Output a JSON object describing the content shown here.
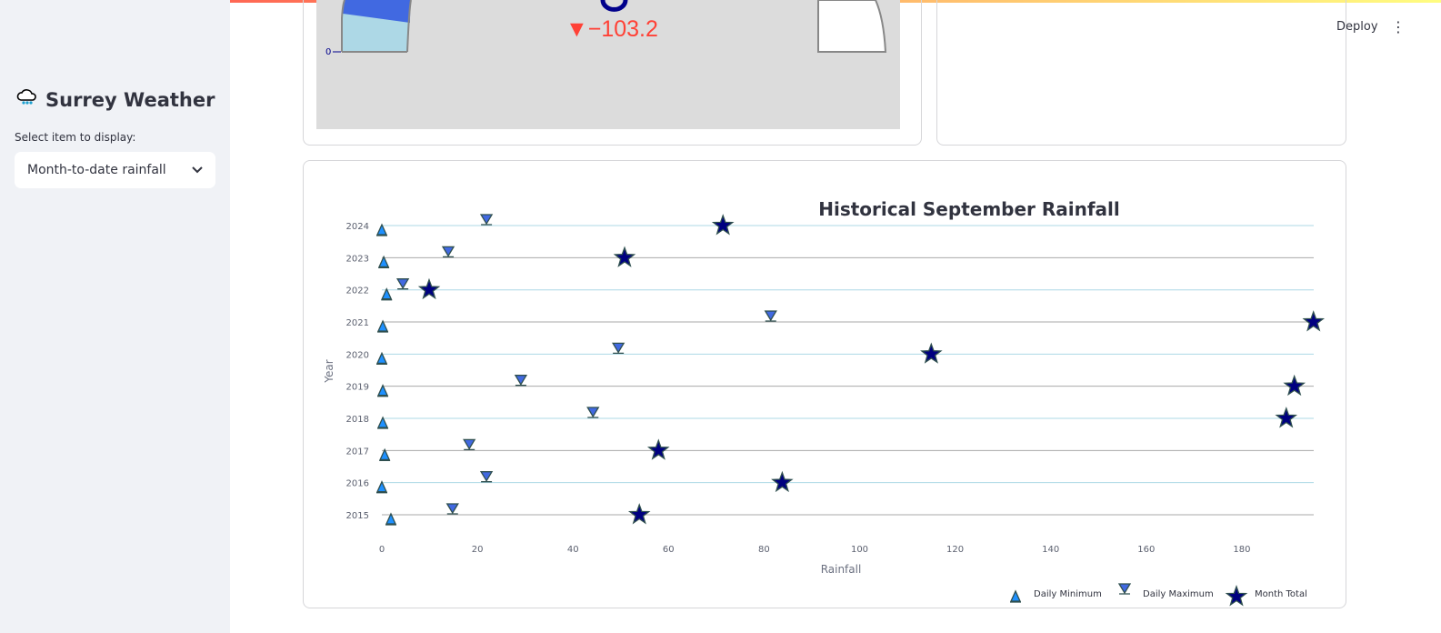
{
  "sidebar": {
    "title": "Surrey Weather",
    "icon": "rain-cloud-icon",
    "select_label": "Select item to display:",
    "select_value": "Month-to-date rainfall"
  },
  "header": {
    "deploy": "Deploy"
  },
  "gauge": {
    "delta": "▼−103.2",
    "axis_zero": "0",
    "colors": {
      "bar": "#4169e1",
      "step": "#add8e6",
      "delta": "#ff4136"
    }
  },
  "chart_data": {
    "type": "scatter",
    "title": "Historical September Rainfall",
    "xlabel": "Rainfall",
    "ylabel": "Year",
    "xlim": [
      0,
      196
    ],
    "xticks": [
      0,
      20,
      40,
      60,
      80,
      100,
      120,
      140,
      160,
      180
    ],
    "years": [
      2015,
      2016,
      2017,
      2018,
      2019,
      2020,
      2021,
      2022,
      2023,
      2024
    ],
    "grid": true,
    "legend": "bottom-right",
    "series": [
      {
        "name": "Daily Minimum",
        "marker": "triangle-up",
        "color": "#1e90ff",
        "values": [
          1.9,
          0,
          0.6,
          0.2,
          0.2,
          0,
          0.2,
          1,
          0.4,
          0
        ]
      },
      {
        "name": "Daily Maximum",
        "marker": "triangle-down",
        "color": "#4169e1",
        "values": [
          14.8,
          21.9,
          18.3,
          44.2,
          29.1,
          49.5,
          81.4,
          4.4,
          13.9,
          21.9
        ]
      },
      {
        "name": "Month Total",
        "marker": "star",
        "color": "#000080",
        "values": [
          53.9,
          83.8,
          57.9,
          189.3,
          191,
          115,
          195,
          9.9,
          50.8,
          71.4
        ]
      }
    ]
  }
}
